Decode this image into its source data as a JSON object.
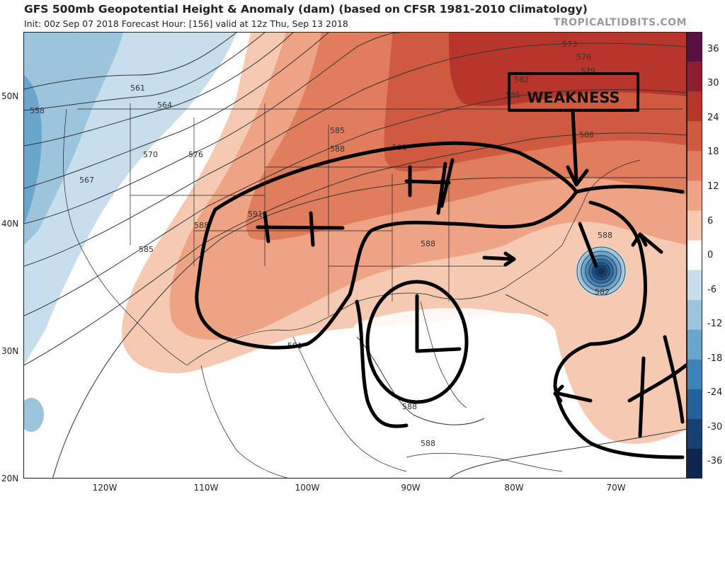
{
  "header": {
    "title": "GFS 500mb Geopotential Height & Anomaly (dam) (based on CFSR 1981-2010 Climatology)",
    "subtitle": "Init: 00z Sep 07 2018   Forecast Hour: [156]   valid at 12z Thu, Sep 13 2018",
    "brand": "TROPICALTIDBITS.COM"
  },
  "axes": {
    "latitudes": [
      "50N",
      "40N",
      "30N",
      "20N"
    ],
    "longitudes": [
      "120W",
      "110W",
      "100W",
      "90W",
      "80W",
      "70W"
    ]
  },
  "colorbar": {
    "labels": [
      "36",
      "30",
      "24",
      "18",
      "12",
      "6",
      "0",
      "-6",
      "-12",
      "-18",
      "-24",
      "-30",
      "-36"
    ],
    "colors": [
      "#5a1040",
      "#8e1f33",
      "#b8352c",
      "#cf5a3f",
      "#df7d5c",
      "#eea384",
      "#f6c9b3",
      "#ffffff",
      "#c7dfec",
      "#9cc5dd",
      "#6aa6cc",
      "#3e82b6",
      "#24609a",
      "#173f72",
      "#0e2550"
    ]
  },
  "contours": {
    "label_561": "561",
    "label_558": "558",
    "label_564": "564",
    "label_567": "567",
    "label_570": "570",
    "label_576": "576",
    "label_573": "573",
    "label_579": "579",
    "label_582a": "582",
    "label_585a": "585",
    "label_585b": "585",
    "label_585c": "585",
    "label_588a": "588",
    "label_588b": "588",
    "label_588c": "588",
    "label_588d": "588",
    "label_588e": "588",
    "label_588f": "588",
    "label_588g": "588",
    "label_591a": "591",
    "label_591b": "591",
    "label_591c": "591",
    "label_582b": "582"
  },
  "annotations": {
    "weakness": "WEAKNESS"
  }
}
